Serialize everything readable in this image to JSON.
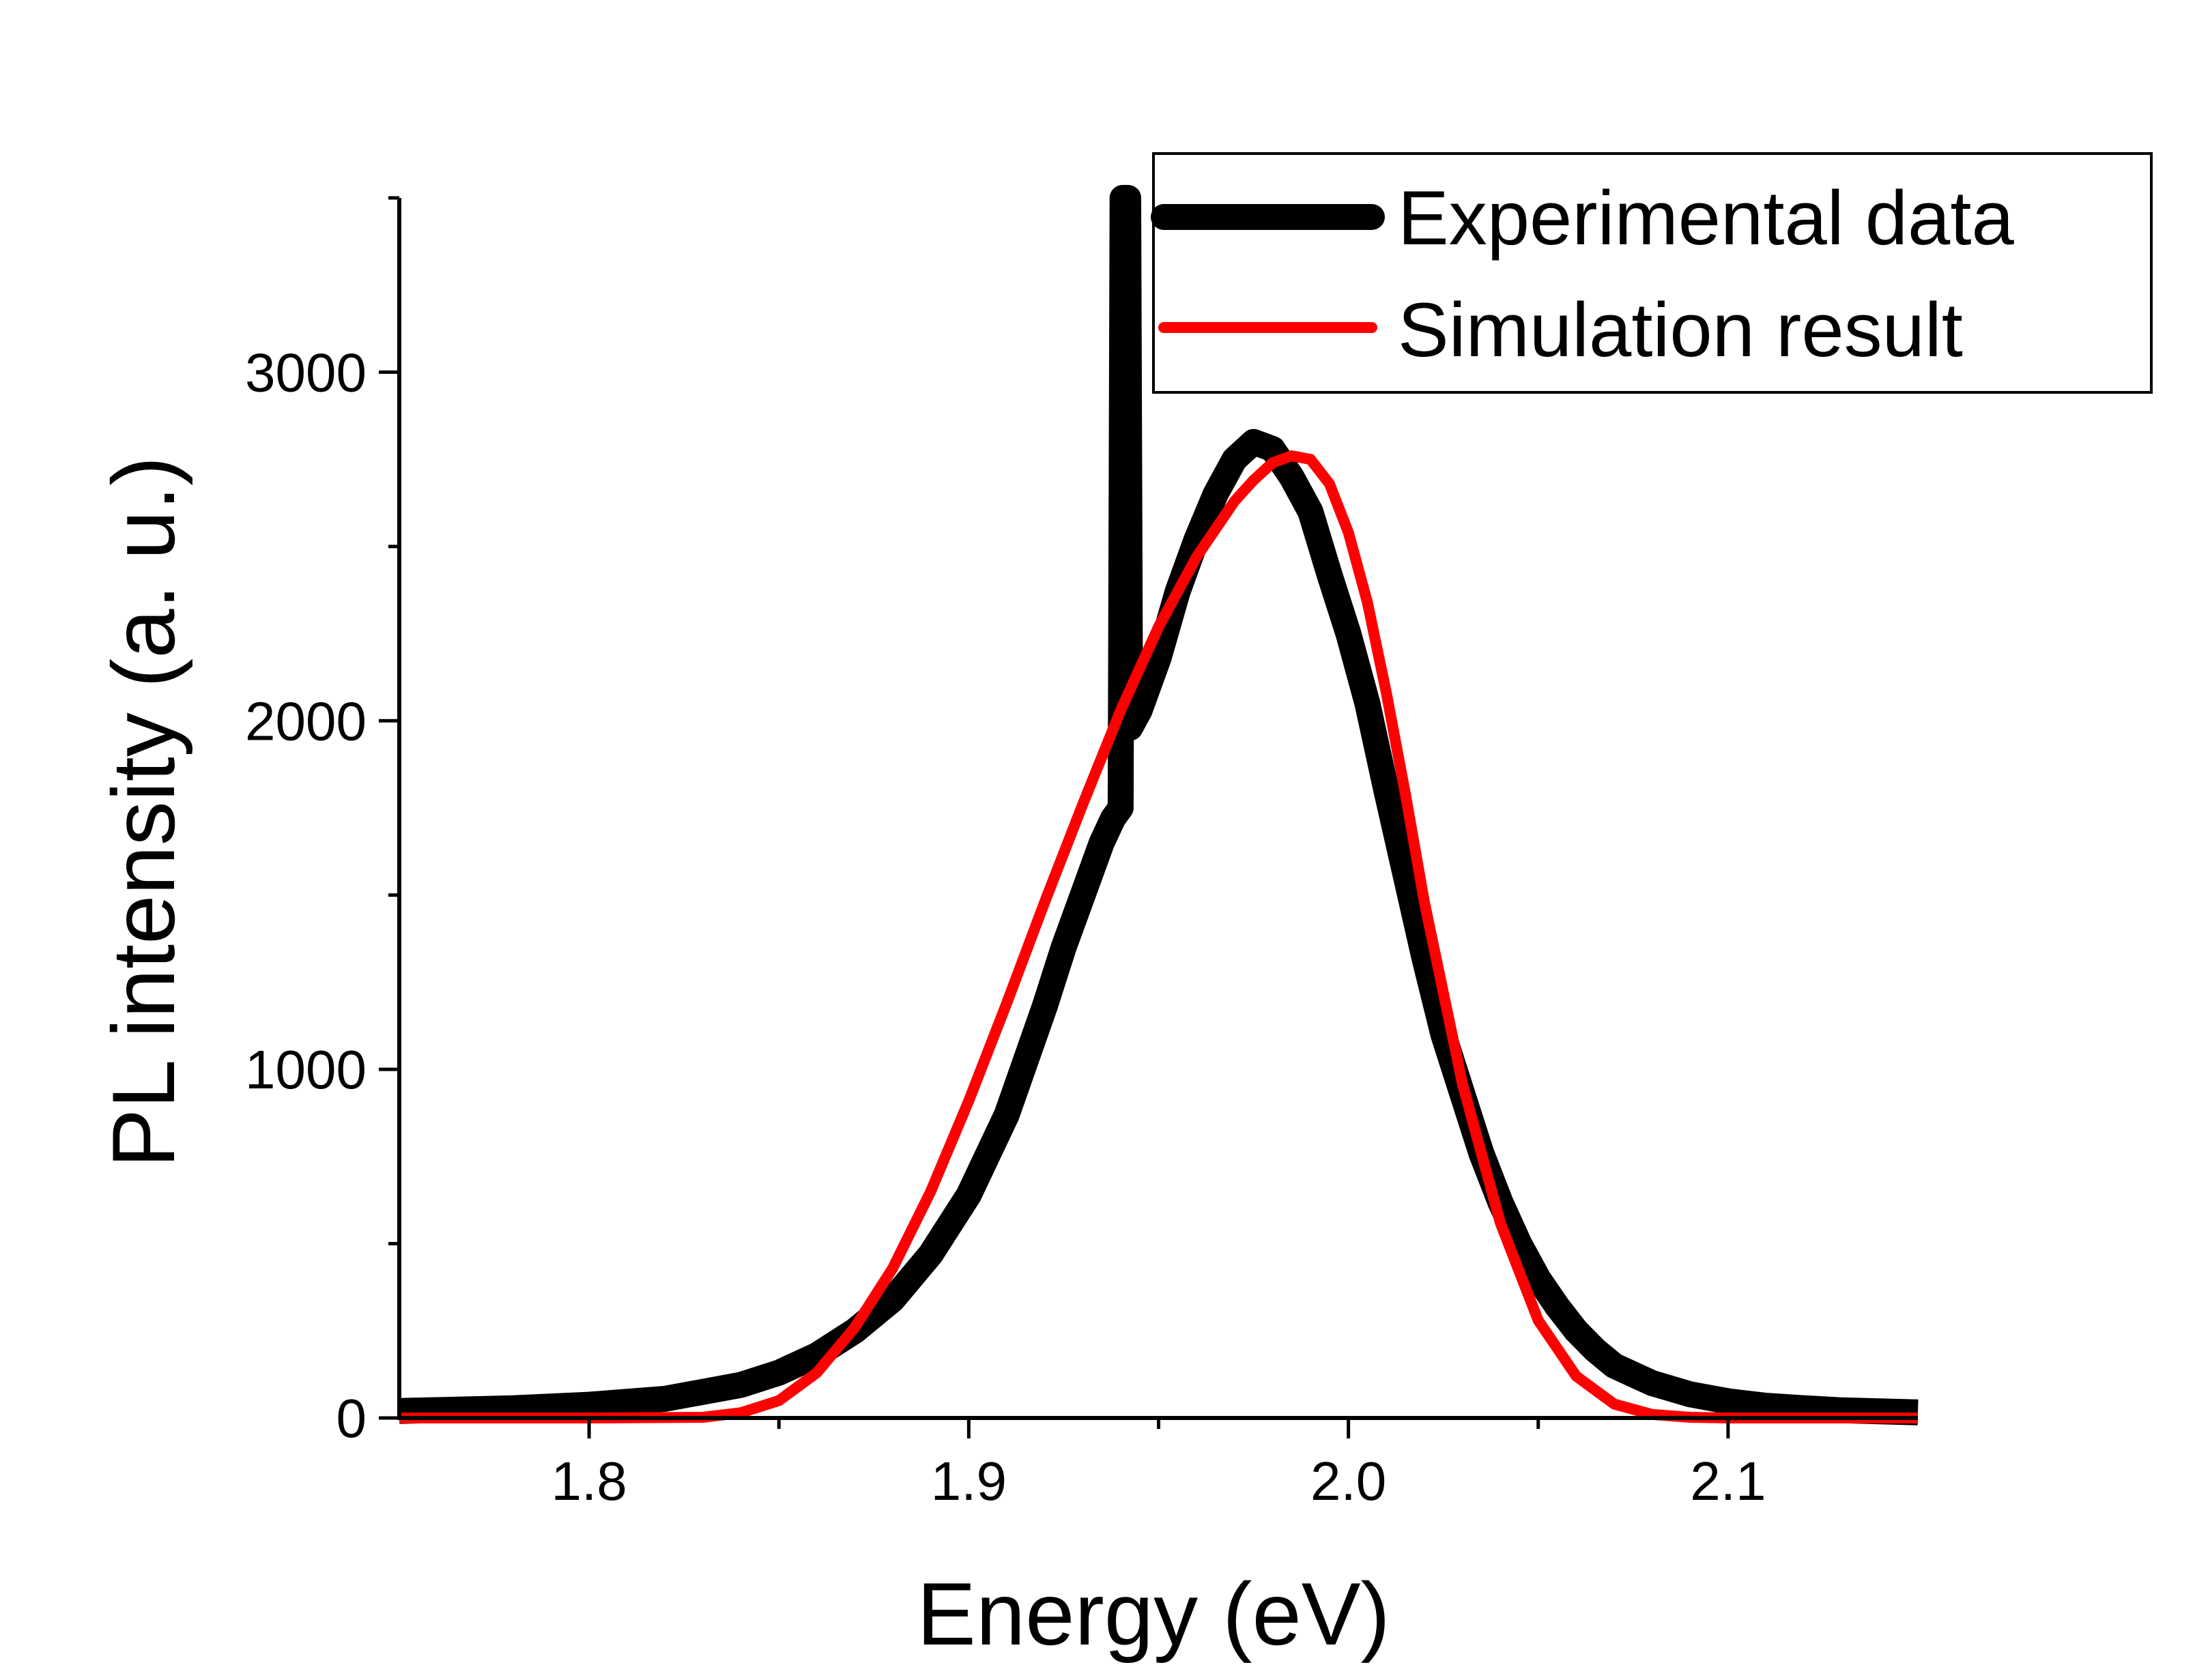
{
  "chart_data": {
    "type": "line",
    "title": "",
    "xlabel": "Energy (eV)",
    "ylabel": "PL intensity (a. u.)",
    "xlim": [
      1.75,
      2.15
    ],
    "ylim": [
      0,
      3500
    ],
    "x_ticks": [
      1.8,
      1.9,
      2.0,
      2.1
    ],
    "x_tick_labels": [
      "1.8",
      "1.9",
      "2.0",
      "2.1"
    ],
    "x_minor_ticks": [
      1.85,
      1.95,
      2.05
    ],
    "y_ticks": [
      0,
      1000,
      2000,
      3000
    ],
    "y_tick_labels": [
      "0",
      "1000",
      "2000",
      "3000"
    ],
    "y_minor_ticks": [
      500,
      1500,
      2500
    ],
    "legend_position": "top-right",
    "grid": false,
    "series": [
      {
        "name": "Experimental data",
        "color": "#000000",
        "x": [
          1.75,
          1.78,
          1.8,
          1.82,
          1.84,
          1.85,
          1.86,
          1.87,
          1.88,
          1.89,
          1.9,
          1.91,
          1.92,
          1.925,
          1.93,
          1.935,
          1.938,
          1.94,
          1.9405,
          1.941,
          1.9415,
          1.942,
          1.9425,
          1.943,
          1.945,
          1.95,
          1.955,
          1.96,
          1.965,
          1.97,
          1.975,
          1.98,
          1.985,
          1.99,
          1.995,
          2.0,
          2.005,
          2.01,
          2.015,
          2.02,
          2.025,
          2.03,
          2.035,
          2.04,
          2.045,
          2.05,
          2.055,
          2.06,
          2.065,
          2.07,
          2.08,
          2.09,
          2.1,
          2.11,
          2.12,
          2.13,
          2.15
        ],
        "y": [
          20,
          28,
          38,
          55,
          95,
          130,
          180,
          250,
          340,
          470,
          640,
          870,
          1180,
          1350,
          1500,
          1650,
          1720,
          1750,
          3500,
          3500,
          3500,
          3500,
          1980,
          1990,
          2030,
          2180,
          2370,
          2520,
          2650,
          2750,
          2800,
          2780,
          2700,
          2600,
          2420,
          2250,
          2050,
          1800,
          1560,
          1320,
          1100,
          930,
          760,
          620,
          500,
          400,
          320,
          250,
          195,
          150,
          100,
          68,
          48,
          35,
          28,
          22,
          16
        ]
      },
      {
        "name": "Simulation result",
        "color": "#ff0000",
        "x": [
          1.75,
          1.8,
          1.83,
          1.84,
          1.85,
          1.86,
          1.87,
          1.88,
          1.89,
          1.9,
          1.91,
          1.92,
          1.93,
          1.94,
          1.95,
          1.96,
          1.97,
          1.975,
          1.98,
          1.985,
          1.99,
          1.995,
          2.0,
          2.005,
          2.01,
          2.015,
          2.02,
          2.03,
          2.04,
          2.05,
          2.06,
          2.07,
          2.08,
          2.09,
          2.1,
          2.15
        ],
        "y": [
          0,
          0,
          2,
          15,
          50,
          130,
          260,
          430,
          650,
          910,
          1190,
          1480,
          1760,
          2030,
          2270,
          2470,
          2630,
          2690,
          2740,
          2760,
          2750,
          2680,
          2540,
          2340,
          2080,
          1790,
          1480,
          960,
          560,
          280,
          120,
          40,
          10,
          2,
          0,
          0
        ]
      }
    ]
  }
}
